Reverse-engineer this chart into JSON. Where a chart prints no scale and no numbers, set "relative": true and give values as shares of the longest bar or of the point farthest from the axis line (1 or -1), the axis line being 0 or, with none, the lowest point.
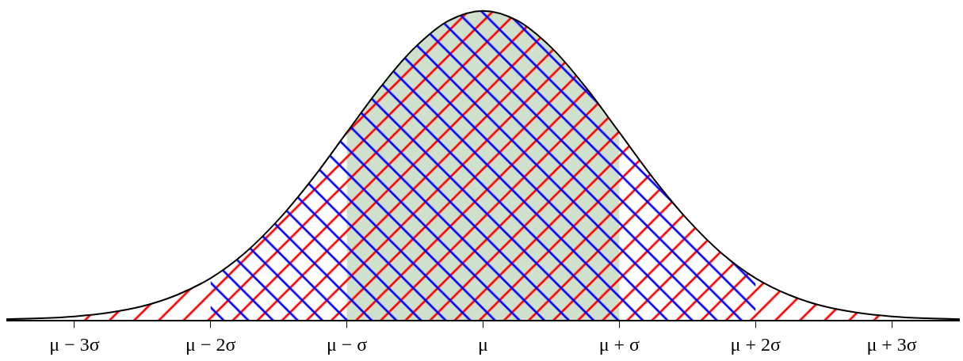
{
  "chart_data": {
    "type": "area",
    "relative": true,
    "xlim": [
      -3.5,
      3.5
    ],
    "xticks": [
      {
        "value": -3,
        "label": "μ − 3σ"
      },
      {
        "value": -2,
        "label": "μ − 2σ"
      },
      {
        "value": -1,
        "label": "μ − σ"
      },
      {
        "value": 0,
        "label": "μ"
      },
      {
        "value": 1,
        "label": "μ + σ"
      },
      {
        "value": 2,
        "label": "μ + 2σ"
      },
      {
        "value": 3,
        "label": "μ + 3σ"
      }
    ],
    "tick_labels": "x",
    "series": [
      {
        "color": "#cfe0cc",
        "x": [
          -1,
          -0.75,
          -0.5,
          -0.25,
          0,
          0.25,
          0.5,
          0.75,
          1
        ],
        "values": [
          0.607,
          0.755,
          0.882,
          0.969,
          1,
          0.969,
          0.882,
          0.755,
          0.607
        ]
      },
      {
        "color": "#ff0000",
        "x": [
          -3,
          -2.75,
          -2.5,
          -2.25,
          -2,
          -1.75,
          -1.5,
          -1.25,
          -1,
          -0.75,
          -0.5,
          -0.25,
          0,
          0.25,
          0.5,
          0.75,
          1,
          1.25,
          1.5,
          1.75,
          2,
          2.25,
          2.5,
          2.75,
          3
        ],
        "values": [
          0.011,
          0.023,
          0.044,
          0.08,
          0.135,
          0.216,
          0.325,
          0.458,
          0.607,
          0.755,
          0.882,
          0.969,
          1,
          0.969,
          0.882,
          0.755,
          0.607,
          0.458,
          0.325,
          0.216,
          0.135,
          0.08,
          0.044,
          0.023,
          0.011
        ]
      },
      {
        "color": "#0000ff",
        "x": [
          -2,
          -1.75,
          -1.5,
          -1.25,
          -1,
          -0.75,
          -0.5,
          -0.25,
          0,
          0.25,
          0.5,
          0.75,
          1,
          1.25,
          1.5,
          1.75,
          2
        ],
        "values": [
          0.135,
          0.216,
          0.325,
          0.458,
          0.607,
          0.755,
          0.882,
          0.969,
          1,
          0.969,
          0.882,
          0.755,
          0.607,
          0.458,
          0.325,
          0.216,
          0.135
        ]
      },
      {
        "type": "line",
        "color": "#000000",
        "x": [
          -3.5,
          -3.25,
          -3,
          -2.75,
          -2.5,
          -2.25,
          -2,
          -1.75,
          -1.5,
          -1.25,
          -1,
          -0.75,
          -0.5,
          -0.25,
          0,
          0.25,
          0.5,
          0.75,
          1,
          1.25,
          1.5,
          1.75,
          2,
          2.25,
          2.5,
          2.75,
          3,
          3.25,
          3.5
        ],
        "values": [
          0.002,
          0.005,
          0.011,
          0.023,
          0.044,
          0.08,
          0.135,
          0.216,
          0.325,
          0.458,
          0.607,
          0.755,
          0.882,
          0.969,
          1,
          0.969,
          0.882,
          0.755,
          0.607,
          0.458,
          0.325,
          0.216,
          0.135,
          0.08,
          0.044,
          0.023,
          0.011,
          0.005,
          0.002
        ]
      }
    ]
  }
}
